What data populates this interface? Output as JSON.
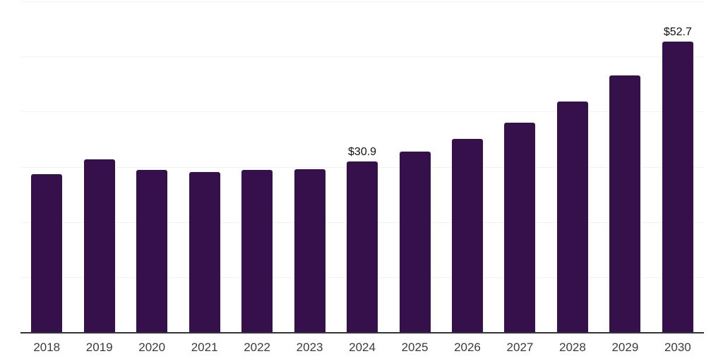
{
  "chart_data": {
    "type": "bar",
    "title": "",
    "xlabel": "",
    "ylabel": "",
    "categories": [
      "2018",
      "2019",
      "2020",
      "2021",
      "2022",
      "2023",
      "2024",
      "2025",
      "2026",
      "2027",
      "2028",
      "2029",
      "2030"
    ],
    "values": [
      28.7,
      31.4,
      29.4,
      29.0,
      29.4,
      29.6,
      30.9,
      32.8,
      35.1,
      38.0,
      41.8,
      46.6,
      52.7
    ],
    "bar_labels": [
      "",
      "",
      "",
      "",
      "",
      "",
      "$30.9",
      "",
      "",
      "",
      "",
      "",
      "$52.7"
    ],
    "ylim": [
      0,
      60
    ],
    "gridline_interval": 10,
    "grid": true,
    "legend": "none",
    "colors": {
      "bar": "#36104B",
      "axis_line": "#33333A",
      "gridline": "#F3F3F5",
      "data_label": "#111111",
      "tick_label": "#3A3A3A",
      "background": "#FFFFFF"
    }
  }
}
